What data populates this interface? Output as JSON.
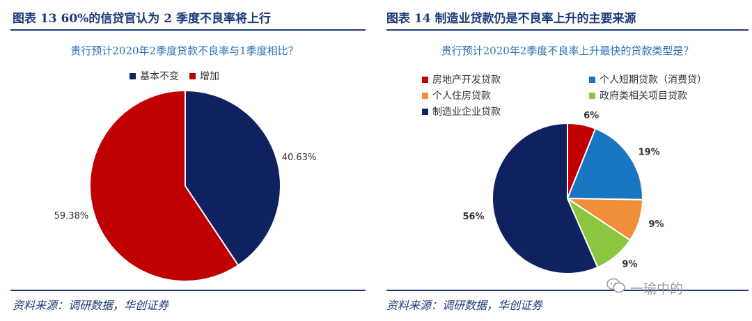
{
  "left": {
    "title": "图表 13   60%的信贷官认为 2 季度不良率将上行",
    "subtitle": "贵行预计2020年2季度贷款不良率与1季度相比？",
    "source": "资料来源：调研数据，华创证券",
    "chart_data": {
      "type": "pie",
      "legend_position": "top",
      "slices": [
        {
          "name": "基本不变",
          "value": 40.63,
          "label": "40.63%",
          "color": "#10215f"
        },
        {
          "name": "增加",
          "value": 59.38,
          "label": "59.38%",
          "color": "#c00000"
        }
      ]
    }
  },
  "right": {
    "title": "图表 14   制造业贷款仍是不良率上升的主要来源",
    "subtitle": "贵行预计2020年2季度不良率上升最快的贷款类型是？",
    "source": "资料来源：调研数据，华创证券",
    "chart_data": {
      "type": "pie",
      "legend_position": "top-left",
      "slices": [
        {
          "name": "房地产开发贷款",
          "value": 6,
          "label": "6%",
          "color": "#c00000"
        },
        {
          "name": "个人短期贷款（消费贷）",
          "value": 19,
          "label": "19%",
          "color": "#1976c2"
        },
        {
          "name": "个人住房贷款",
          "value": 9,
          "label": "9%",
          "color": "#ef8f3a"
        },
        {
          "name": "政府类相关项目贷款",
          "value": 9,
          "label": "9%",
          "color": "#8cc63f"
        },
        {
          "name": "制造业企业贷款",
          "value": 56,
          "label": "56%",
          "color": "#10215f"
        }
      ]
    }
  },
  "watermark": "一瑜中的"
}
